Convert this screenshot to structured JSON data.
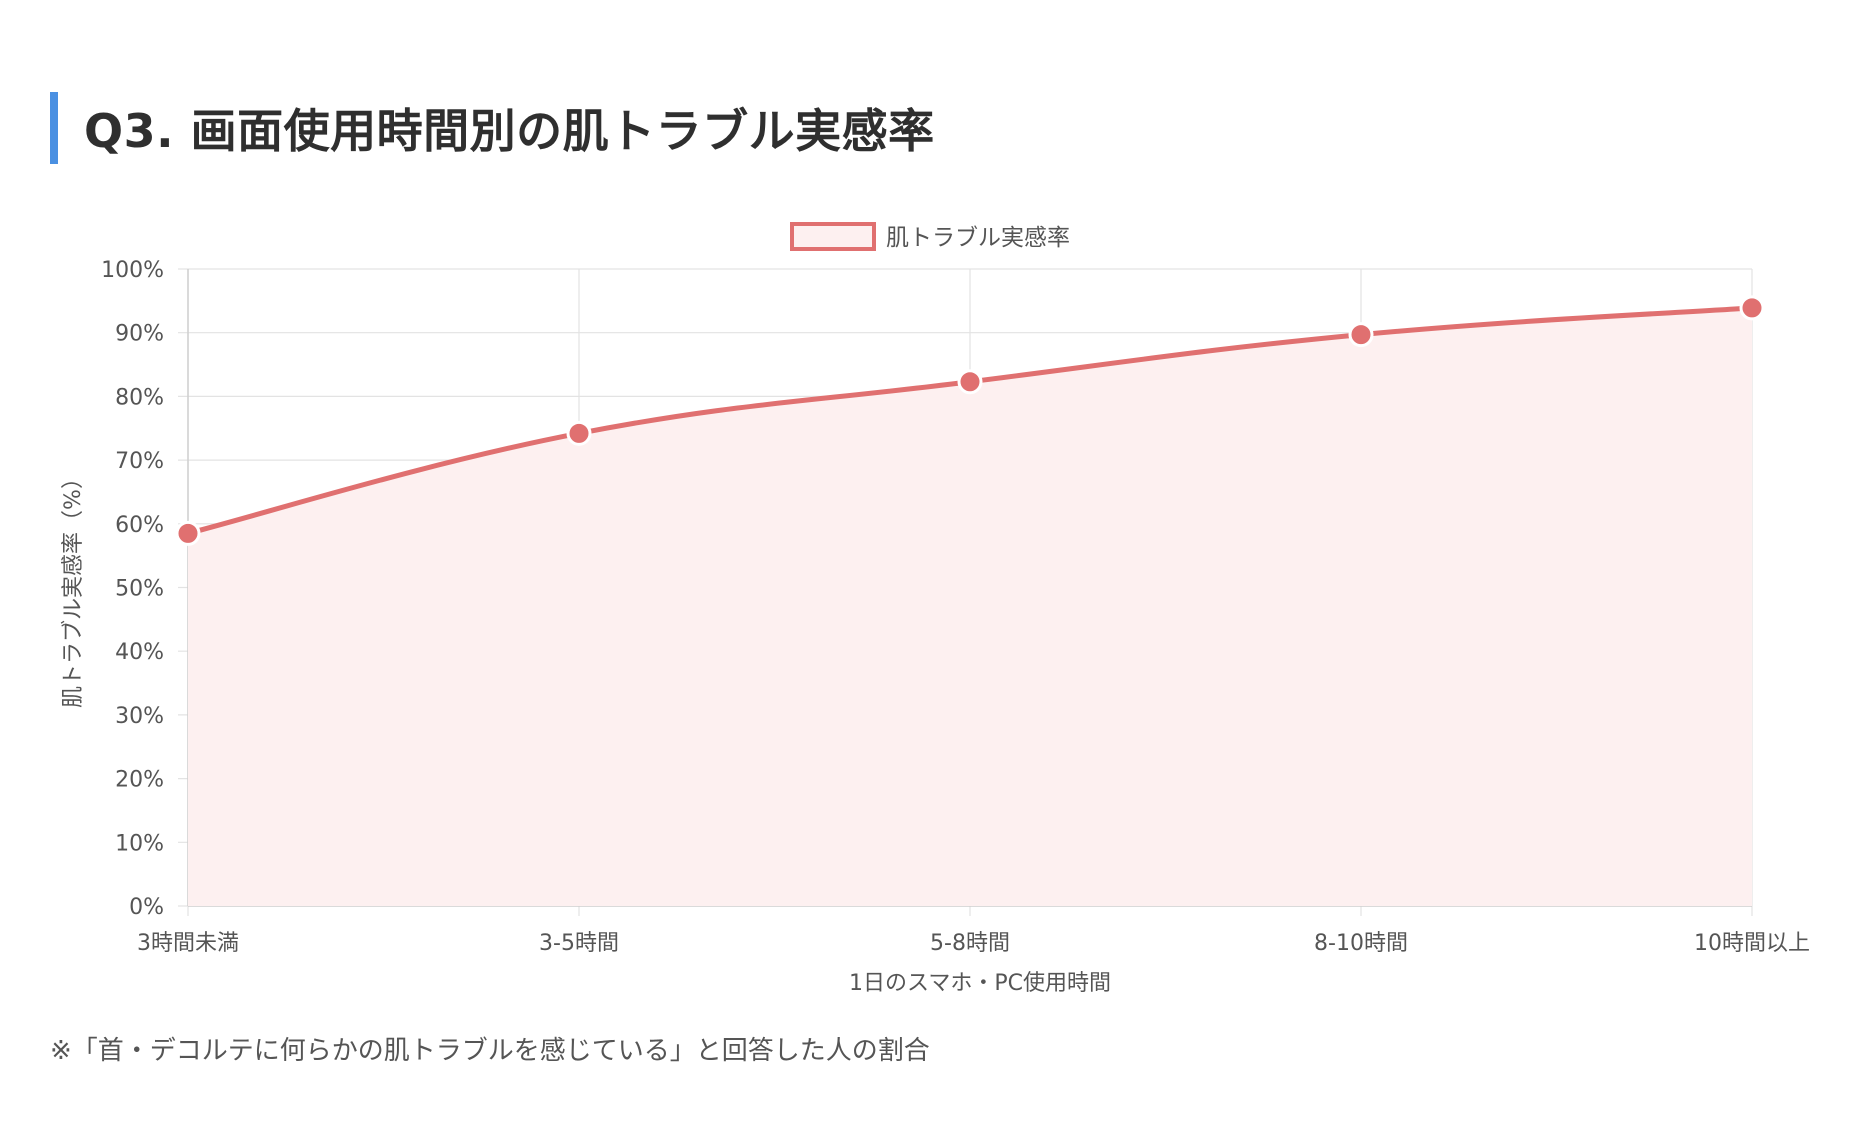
{
  "page": {
    "title": "Q3. 画面使用時間別の肌トラブル実感率",
    "note": "※「首・デコルテに何らかの肌トラブルを感じている」と回答した人の割合"
  },
  "colors": {
    "title_accent": "#4a90e2",
    "series_line": "#e07070",
    "series_fill": "#fdf0f0",
    "grid": "#e3e3e3",
    "text": "#555555"
  },
  "chart_data": {
    "type": "area",
    "categories": [
      "3時間未満",
      "3-5時間",
      "5-8時間",
      "8-10時間",
      "10時間以上"
    ],
    "series": [
      {
        "name": "肌トラブル実感率",
        "values": [
          58.5,
          74.2,
          82.3,
          89.7,
          93.9
        ]
      }
    ],
    "xlabel": "1日のスマホ・PC使用時間",
    "ylabel": "肌トラブル実感率（%）",
    "ylim": [
      0,
      100
    ],
    "yticks": [
      "0%",
      "10%",
      "20%",
      "30%",
      "40%",
      "50%",
      "60%",
      "70%",
      "80%",
      "90%",
      "100%"
    ],
    "grid": true,
    "legend": "top-center"
  }
}
